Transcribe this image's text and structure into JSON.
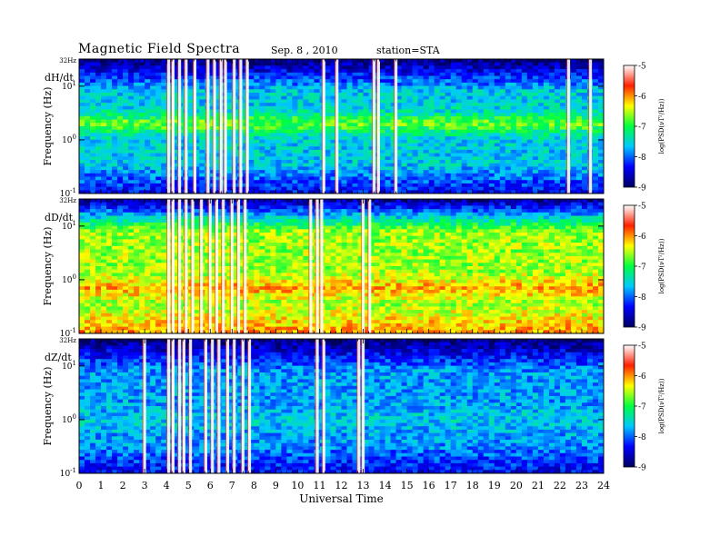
{
  "header": {
    "title": "Magnetic Field Spectra",
    "date": "Sep. 8 , 2010",
    "station": "station=STA"
  },
  "chart_data": {
    "type": "heatmap",
    "xlabel": "Universal Time",
    "x_ticks": [
      "0",
      "1",
      "2",
      "3",
      "4",
      "5",
      "6",
      "7",
      "8",
      "9",
      "10",
      "11",
      "12",
      "13",
      "14",
      "15",
      "16",
      "17",
      "18",
      "19",
      "20",
      "21",
      "22",
      "23",
      "24"
    ],
    "xlim": [
      0,
      24
    ],
    "ylabel": "Frequency (Hz)",
    "y_scale": "log",
    "ylim": [
      0.1,
      32
    ],
    "y_tick_values": [
      10,
      1,
      0.1
    ],
    "top_freq_label": "32Hz",
    "colorbar": {
      "label": "log(PSD(νT²/Hz))",
      "range": [
        -9,
        -5
      ],
      "ticks": [
        "-5",
        "-6",
        "-7",
        "-8",
        "-9"
      ],
      "colors": [
        "#000060",
        "#0000ff",
        "#00c8ff",
        "#00ff40",
        "#ffff00",
        "#ff2000",
        "#ffffff"
      ]
    },
    "panels": [
      {
        "name": "dH/dt",
        "bright_band_hz": 2.0,
        "band_level": -6.8,
        "background_level": -7.6,
        "low_freq_level": -8.4,
        "high_freq_level": -8.9,
        "spike_times": [
          4.1,
          4.3,
          4.6,
          4.9,
          5.3,
          5.9,
          6.2,
          6.5,
          6.7,
          7.1,
          7.4,
          7.7,
          11.2,
          11.8,
          13.5,
          13.7,
          14.5,
          22.4,
          23.4
        ]
      },
      {
        "name": "dD/dt",
        "bright_band_hz": 0.7,
        "band_level": -6.1,
        "background_level": -6.6,
        "low_freq_level": -6.0,
        "high_freq_level": -8.8,
        "spike_times": [
          4.1,
          4.3,
          4.6,
          4.9,
          5.2,
          5.6,
          6.0,
          6.3,
          6.6,
          7.0,
          7.3,
          7.6,
          10.6,
          10.9,
          11.1,
          13.0,
          13.3
        ]
      },
      {
        "name": "dZ/dt",
        "bright_band_hz": 1.0,
        "band_level": -7.6,
        "background_level": -7.8,
        "low_freq_level": -8.4,
        "high_freq_level": -8.9,
        "spike_times": [
          3.0,
          4.1,
          4.3,
          4.6,
          4.8,
          5.1,
          5.8,
          6.1,
          6.4,
          6.8,
          7.1,
          7.5,
          7.8,
          10.9,
          11.2,
          12.8,
          13.0
        ]
      }
    ]
  }
}
